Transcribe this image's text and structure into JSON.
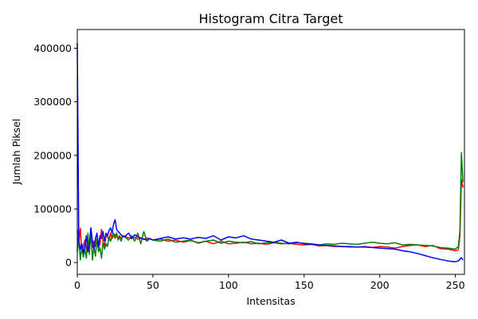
{
  "chart_data": {
    "type": "line",
    "title": "Histogram Citra Target",
    "xlabel": "Intensitas",
    "ylabel": "Jumlah Piksel",
    "xlim": [
      0,
      256
    ],
    "ylim": [
      -22000,
      435000
    ],
    "xticks": [
      0,
      50,
      100,
      150,
      200,
      250
    ],
    "yticks": [
      0,
      100000,
      200000,
      300000,
      400000
    ],
    "grid": false,
    "legend": "none",
    "series_colors": [
      "#ff0000",
      "#008000",
      "#0000ff"
    ],
    "x": [
      0,
      1,
      2,
      3,
      4,
      5,
      6,
      7,
      8,
      9,
      10,
      11,
      12,
      13,
      14,
      15,
      16,
      17,
      18,
      19,
      20,
      21,
      22,
      23,
      24,
      25,
      26,
      27,
      28,
      29,
      30,
      32,
      34,
      36,
      38,
      40,
      42,
      44,
      46,
      48,
      50,
      55,
      60,
      65,
      70,
      75,
      80,
      85,
      90,
      95,
      100,
      105,
      110,
      115,
      120,
      125,
      130,
      135,
      140,
      145,
      150,
      155,
      160,
      165,
      170,
      175,
      180,
      185,
      190,
      195,
      200,
      205,
      210,
      215,
      220,
      225,
      230,
      235,
      240,
      245,
      250,
      252,
      253,
      254,
      255
    ],
    "series": [
      {
        "values": [
          62000,
          35000,
          64000,
          20000,
          30000,
          42000,
          25000,
          38000,
          35000,
          48000,
          28000,
          40000,
          30000,
          45000,
          28000,
          35000,
          62000,
          40000,
          30000,
          50000,
          48000,
          42000,
          55000,
          45000,
          50000,
          52000,
          48000,
          46000,
          50000,
          44000,
          50000,
          48000,
          46000,
          45000,
          47000,
          44000,
          45000,
          43000,
          46000,
          44000,
          42000,
          44000,
          40000,
          42000,
          38000,
          41000,
          37000,
          40000,
          35000,
          40000,
          35000,
          36000,
          38000,
          35000,
          36000,
          34000,
          37000,
          35000,
          36000,
          34000,
          33000,
          34000,
          31000,
          32000,
          30000,
          30000,
          29000,
          29000,
          30000,
          28000,
          30000,
          29000,
          27000,
          30000,
          32000,
          33000,
          30000,
          32000,
          26000,
          25000,
          22000,
          24000,
          50000,
          155000,
          140000
        ]
      },
      {
        "values": [
          20000,
          45000,
          5000,
          30000,
          10000,
          25000,
          8000,
          55000,
          15000,
          60000,
          5000,
          30000,
          12000,
          45000,
          20000,
          28000,
          8000,
          38000,
          25000,
          35000,
          30000,
          48000,
          40000,
          50000,
          55000,
          45000,
          55000,
          42000,
          48000,
          40000,
          50000,
          46000,
          42000,
          50000,
          40000,
          55000,
          35000,
          58000,
          40000,
          45000,
          42000,
          40000,
          44000,
          38000,
          40000,
          42000,
          36000,
          40000,
          42000,
          36000,
          40000,
          38000,
          37000,
          39000,
          35000,
          37000,
          38000,
          36000,
          35000,
          37000,
          36000,
          35000,
          33000,
          35000,
          34000,
          36000,
          35000,
          34000,
          36000,
          38000,
          36000,
          35000,
          37000,
          33000,
          34000,
          33000,
          32000,
          31000,
          28000,
          27000,
          25000,
          30000,
          60000,
          205000,
          150000
        ]
      },
      {
        "values": [
          410000,
          40000,
          25000,
          35000,
          18000,
          30000,
          50000,
          20000,
          35000,
          65000,
          40000,
          25000,
          45000,
          55000,
          30000,
          50000,
          45000,
          58000,
          40000,
          55000,
          50000,
          60000,
          65000,
          55000,
          72000,
          80000,
          62000,
          58000,
          55000,
          52000,
          48000,
          50000,
          55000,
          45000,
          52000,
          48000,
          46000,
          44000,
          42000,
          45000,
          42000,
          45000,
          48000,
          44000,
          46000,
          44000,
          47000,
          45000,
          50000,
          42000,
          48000,
          46000,
          50000,
          44000,
          42000,
          40000,
          38000,
          42000,
          36000,
          38000,
          35000,
          34000,
          33000,
          32000,
          31000,
          30000,
          30000,
          29000,
          29000,
          28000,
          27000,
          26000,
          25000,
          22000,
          20000,
          17000,
          13000,
          9000,
          6000,
          3000,
          1500,
          3000,
          6000,
          9000,
          5000
        ]
      }
    ]
  }
}
